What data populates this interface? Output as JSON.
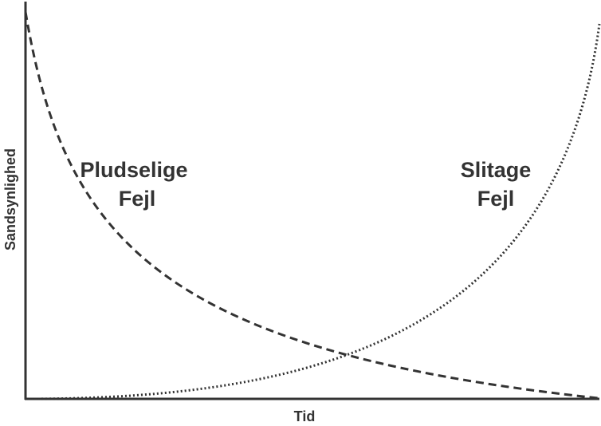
{
  "x_label": "Tid",
  "y_label": "Sandsynlighed",
  "annotations": [
    {
      "lines": [
        "Pludselige",
        "Fejl"
      ]
    },
    {
      "lines": [
        "Slitage",
        "Fejl"
      ]
    }
  ]
}
